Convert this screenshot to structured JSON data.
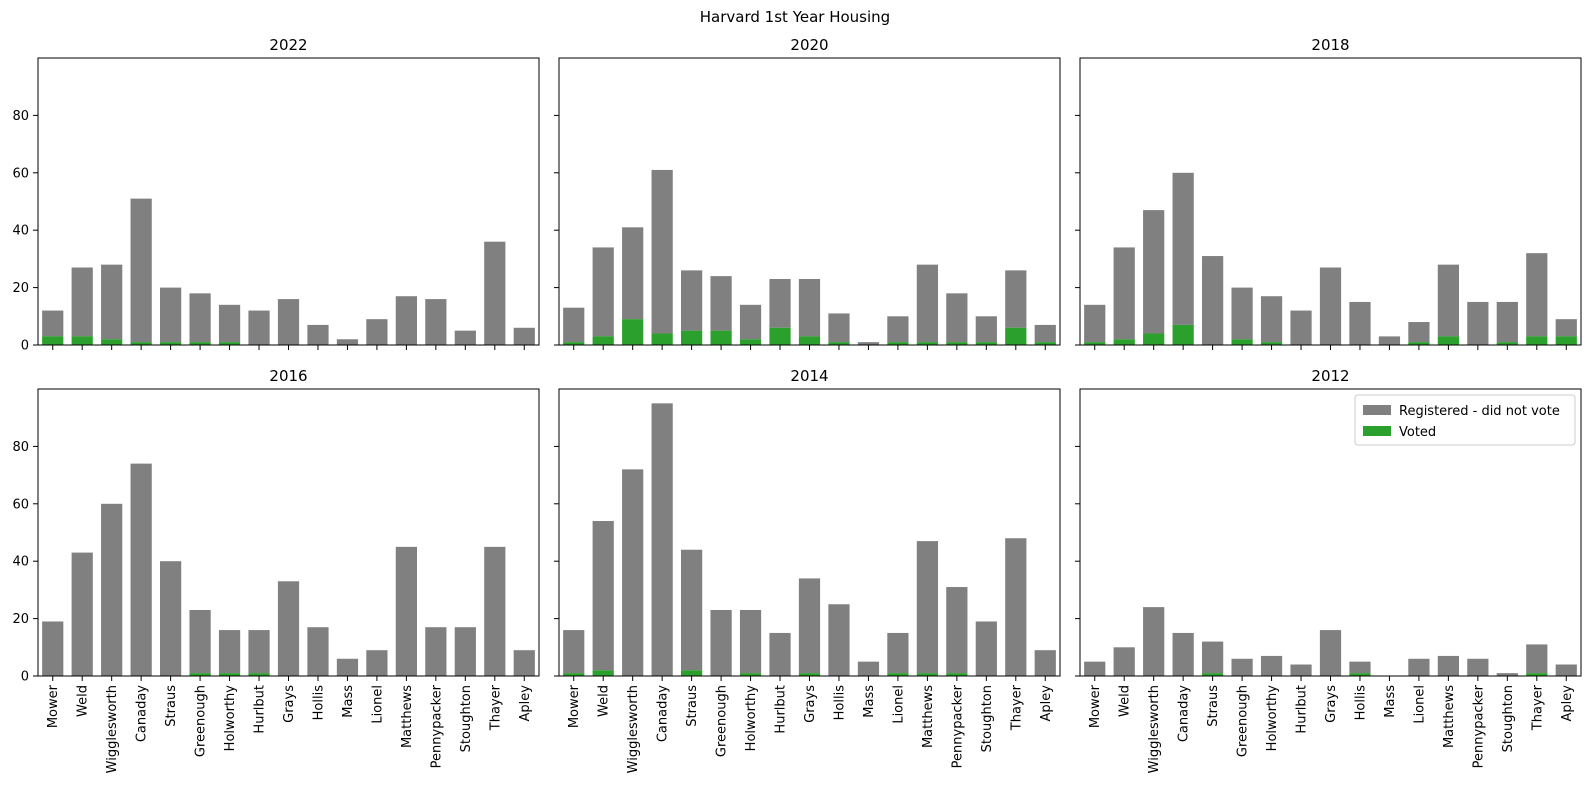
{
  "chart_data": {
    "type": "bar",
    "stacked": true,
    "title": "Harvard 1st Year Housing",
    "categories": [
      "Mower",
      "Weld",
      "Wigglesworth",
      "Canaday",
      "Straus",
      "Greenough",
      "Holworthy",
      "Hurlbut",
      "Grays",
      "Hollis",
      "Mass",
      "Lionel",
      "Matthews",
      "Pennypacker",
      "Stoughton",
      "Thayer",
      "Apley"
    ],
    "ylim": [
      0,
      100
    ],
    "yticks": [
      0,
      20,
      40,
      60,
      80
    ],
    "colors": {
      "registered": "#808080",
      "voted": "#2ca02c"
    },
    "legend": {
      "placement": "top-right",
      "panel": 5,
      "entries": [
        {
          "key": "registered",
          "label": "Registered - did not vote"
        },
        {
          "key": "voted",
          "label": "Voted"
        }
      ]
    },
    "panels": [
      {
        "title": "2022",
        "totals": [
          12,
          27,
          28,
          51,
          20,
          18,
          14,
          12,
          16,
          7,
          2,
          9,
          17,
          16,
          5,
          36,
          6
        ],
        "voted": [
          3,
          3,
          2,
          1,
          1,
          1,
          1,
          0,
          0,
          0,
          0,
          0,
          0,
          0,
          0,
          0,
          0
        ]
      },
      {
        "title": "2020",
        "totals": [
          13,
          34,
          41,
          61,
          26,
          24,
          14,
          23,
          23,
          11,
          1,
          10,
          28,
          18,
          10,
          26,
          7
        ],
        "voted": [
          1,
          3,
          9,
          4,
          5,
          5,
          2,
          6,
          3,
          1,
          0,
          1,
          1,
          1,
          1,
          6,
          1
        ]
      },
      {
        "title": "2018",
        "totals": [
          14,
          34,
          47,
          60,
          31,
          20,
          17,
          12,
          27,
          15,
          3,
          8,
          28,
          15,
          15,
          32,
          9
        ],
        "voted": [
          1,
          2,
          4,
          7,
          0,
          2,
          1,
          0,
          0,
          0,
          0,
          1,
          3,
          0,
          1,
          3,
          3
        ]
      },
      {
        "title": "2016",
        "totals": [
          19,
          43,
          60,
          74,
          40,
          23,
          16,
          16,
          33,
          17,
          6,
          9,
          45,
          17,
          17,
          45,
          9
        ],
        "voted": [
          0,
          0,
          0,
          0,
          0,
          1,
          1,
          1,
          0,
          0,
          0,
          0,
          0,
          0,
          0,
          0,
          0
        ]
      },
      {
        "title": "2014",
        "totals": [
          16,
          54,
          72,
          95,
          44,
          23,
          23,
          15,
          34,
          25,
          5,
          15,
          47,
          31,
          19,
          48,
          9
        ],
        "voted": [
          1,
          2,
          0,
          0,
          2,
          0,
          1,
          0,
          1,
          0,
          0,
          1,
          1,
          1,
          0,
          0,
          0
        ]
      },
      {
        "title": "2012",
        "totals": [
          5,
          10,
          24,
          15,
          12,
          6,
          7,
          4,
          16,
          5,
          0,
          6,
          7,
          6,
          1,
          11,
          4
        ],
        "voted": [
          0,
          0,
          0,
          0,
          1,
          0,
          0,
          0,
          0,
          1,
          0,
          0,
          0,
          0,
          0,
          1,
          0
        ]
      }
    ]
  }
}
